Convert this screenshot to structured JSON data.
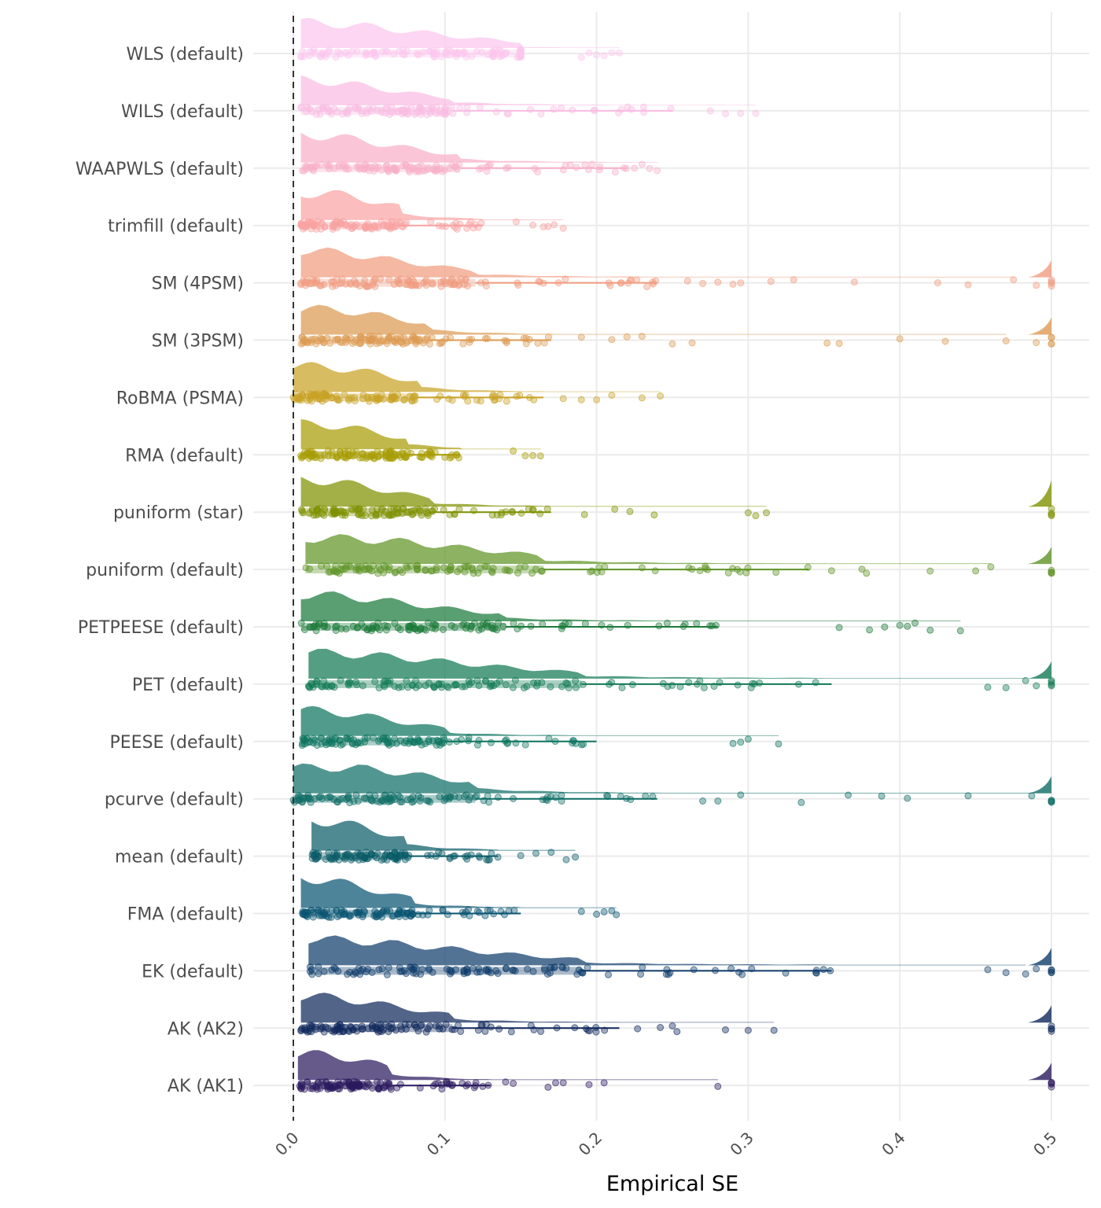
{
  "chart_data": {
    "type": "raincloud",
    "title": "",
    "xlabel": "Empirical SE",
    "ylabel": "",
    "xlim": [
      0,
      0.5
    ],
    "xticks": [
      "0.0",
      "0.1",
      "0.2",
      "0.3",
      "0.4",
      "0.5"
    ],
    "xtick_values": [
      0,
      0.1,
      0.2,
      0.3,
      0.4,
      0.5
    ],
    "reference_line": 0,
    "grid": true,
    "series": [
      {
        "name": "WLS (default)",
        "color": "#fcc6ee",
        "min": 0.005,
        "mode": 0.005,
        "q3": 0.15,
        "whisker": 0.15,
        "outliers": [
          0.19,
          0.195,
          0.2,
          0.205,
          0.21,
          0.215
        ],
        "spike": false
      },
      {
        "name": "WILS (default)",
        "color": "#f9bde3",
        "min": 0.005,
        "mode": 0.005,
        "q3": 0.105,
        "whisker": 0.25,
        "outliers": [
          0.275,
          0.285,
          0.295,
          0.305
        ],
        "spike": false
      },
      {
        "name": "WAAPWLS (default)",
        "color": "#f8b0c8",
        "min": 0.005,
        "mode": 0.005,
        "q3": 0.11,
        "whisker": 0.22,
        "outliers": [
          0.225,
          0.23,
          0.235,
          0.24
        ],
        "spike": false
      },
      {
        "name": "trimfill (default)",
        "color": "#f9a3a3",
        "min": 0.005,
        "mode": 0.02,
        "q3": 0.07,
        "whisker": 0.125,
        "outliers": [
          0.147,
          0.158,
          0.165,
          0.168,
          0.172,
          0.178
        ],
        "spike": false
      },
      {
        "name": "SM (4PSM)",
        "color": "#f09c80",
        "min": 0.005,
        "mode": 0.005,
        "q3": 0.12,
        "whisker": 0.24,
        "outliers": [
          0.26,
          0.27,
          0.28,
          0.29,
          0.295,
          0.315,
          0.33,
          0.37,
          0.425,
          0.445,
          0.475,
          0.49,
          0.5
        ],
        "spike": true
      },
      {
        "name": "SM (3PSM)",
        "color": "#dd9a52",
        "min": 0.005,
        "mode": 0.02,
        "q3": 0.09,
        "whisker": 0.17,
        "outliers": [
          0.19,
          0.21,
          0.22,
          0.23,
          0.25,
          0.263,
          0.352,
          0.36,
          0.4,
          0.43,
          0.47,
          0.49,
          0.5
        ],
        "spike": true
      },
      {
        "name": "RoBMA (PSMA)",
        "color": "#c9a226",
        "min": 0.0,
        "mode": 0.018,
        "q3": 0.082,
        "whisker": 0.165,
        "outliers": [
          0.178,
          0.19,
          0.2,
          0.21,
          0.23,
          0.242
        ],
        "spike": false
      },
      {
        "name": "RMA (default)",
        "color": "#a89d05",
        "min": 0.005,
        "mode": 0.015,
        "q3": 0.075,
        "whisker": 0.11,
        "outliers": [
          0.145,
          0.153,
          0.158,
          0.163
        ],
        "spike": false
      },
      {
        "name": "puniform (star)",
        "color": "#7f9102",
        "min": 0.005,
        "mode": 0.01,
        "q3": 0.09,
        "whisker": 0.17,
        "outliers": [
          0.192,
          0.212,
          0.222,
          0.238,
          0.3,
          0.305,
          0.312,
          0.5
        ],
        "spike": true
      },
      {
        "name": "puniform (default)",
        "color": "#5f9426",
        "min": 0.008,
        "mode": 0.03,
        "q3": 0.165,
        "whisker": 0.34,
        "outliers": [
          0.355,
          0.375,
          0.378,
          0.42,
          0.45,
          0.46,
          0.5
        ],
        "spike": true
      },
      {
        "name": "PETPEESE (default)",
        "color": "#1b7a3a",
        "min": 0.005,
        "mode": 0.01,
        "q3": 0.14,
        "whisker": 0.28,
        "outliers": [
          0.36,
          0.38,
          0.39,
          0.4,
          0.405,
          0.41,
          0.42,
          0.44
        ],
        "spike": false
      },
      {
        "name": "PET (default)",
        "color": "#127a55",
        "min": 0.01,
        "mode": 0.01,
        "q3": 0.19,
        "whisker": 0.355,
        "outliers": [
          0.458,
          0.47,
          0.483,
          0.49,
          0.5
        ],
        "spike": true
      },
      {
        "name": "PEESE (default)",
        "color": "#0e7560",
        "min": 0.005,
        "mode": 0.01,
        "q3": 0.1,
        "whisker": 0.2,
        "outliers": [
          0.29,
          0.295,
          0.3,
          0.32
        ],
        "spike": false
      },
      {
        "name": "pcurve (default)",
        "color": "#0f6d66",
        "min": 0.0,
        "mode": 0.03,
        "q3": 0.12,
        "whisker": 0.24,
        "outliers": [
          0.27,
          0.28,
          0.295,
          0.335,
          0.366,
          0.388,
          0.405,
          0.445,
          0.487,
          0.5
        ],
        "spike": true
      },
      {
        "name": "mean (default)",
        "color": "#0b5c68",
        "min": 0.012,
        "mode": 0.015,
        "q3": 0.075,
        "whisker": 0.135,
        "outliers": [
          0.15,
          0.16,
          0.17,
          0.18,
          0.186
        ],
        "spike": false
      },
      {
        "name": "FMA (default)",
        "color": "#0a5572",
        "min": 0.005,
        "mode": 0.005,
        "q3": 0.08,
        "whisker": 0.15,
        "outliers": [
          0.19,
          0.2,
          0.205,
          0.21,
          0.213
        ],
        "spike": false
      },
      {
        "name": "EK (default)",
        "color": "#0f3d6b",
        "min": 0.01,
        "mode": 0.01,
        "q3": 0.19,
        "whisker": 0.355,
        "outliers": [
          0.458,
          0.47,
          0.483,
          0.49,
          0.5
        ],
        "spike": true
      },
      {
        "name": "AK (AK2)",
        "color": "#10285c",
        "min": 0.005,
        "mode": 0.01,
        "q3": 0.105,
        "whisker": 0.215,
        "outliers": [
          0.227,
          0.242,
          0.25,
          0.253,
          0.285,
          0.3,
          0.317,
          0.5
        ],
        "spike": true
      },
      {
        "name": "AK (AK1)",
        "color": "#2b1a5e",
        "min": 0.003,
        "mode": 0.018,
        "q3": 0.065,
        "whisker": 0.13,
        "outliers": [
          0.14,
          0.145,
          0.168,
          0.173,
          0.178,
          0.195,
          0.205,
          0.28,
          0.5
        ],
        "spike": true
      }
    ]
  }
}
